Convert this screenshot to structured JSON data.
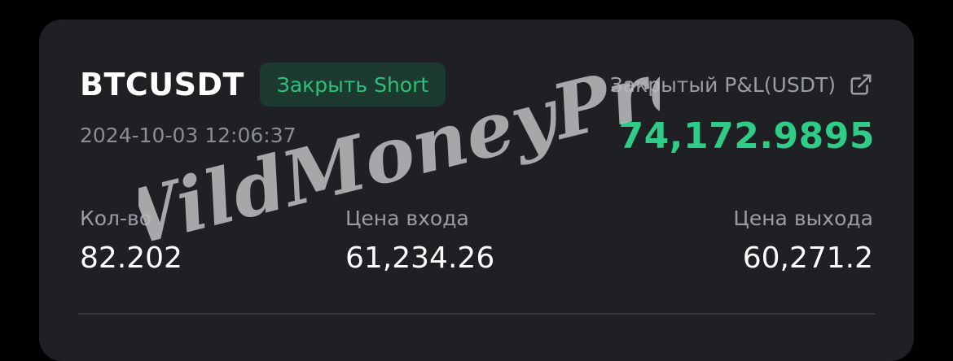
{
  "position": {
    "symbol": "BTCUSDT",
    "action_badge": "Закрыть Short",
    "timestamp": "2024-10-03 12:06:37"
  },
  "pnl": {
    "label": "Закрытый P&L(USDT)",
    "value": "74,172.9895",
    "color": "#2ecc87"
  },
  "stats": {
    "qty_label": "Кол-во",
    "qty_value": "82.202",
    "entry_label": "Цена входа",
    "entry_value": "61,234.26",
    "exit_label": "Цена выхода",
    "exit_value": "60,271.2"
  },
  "watermark": {
    "text": "WildMoneyPro"
  },
  "icons": {
    "share": "external-link-icon"
  }
}
